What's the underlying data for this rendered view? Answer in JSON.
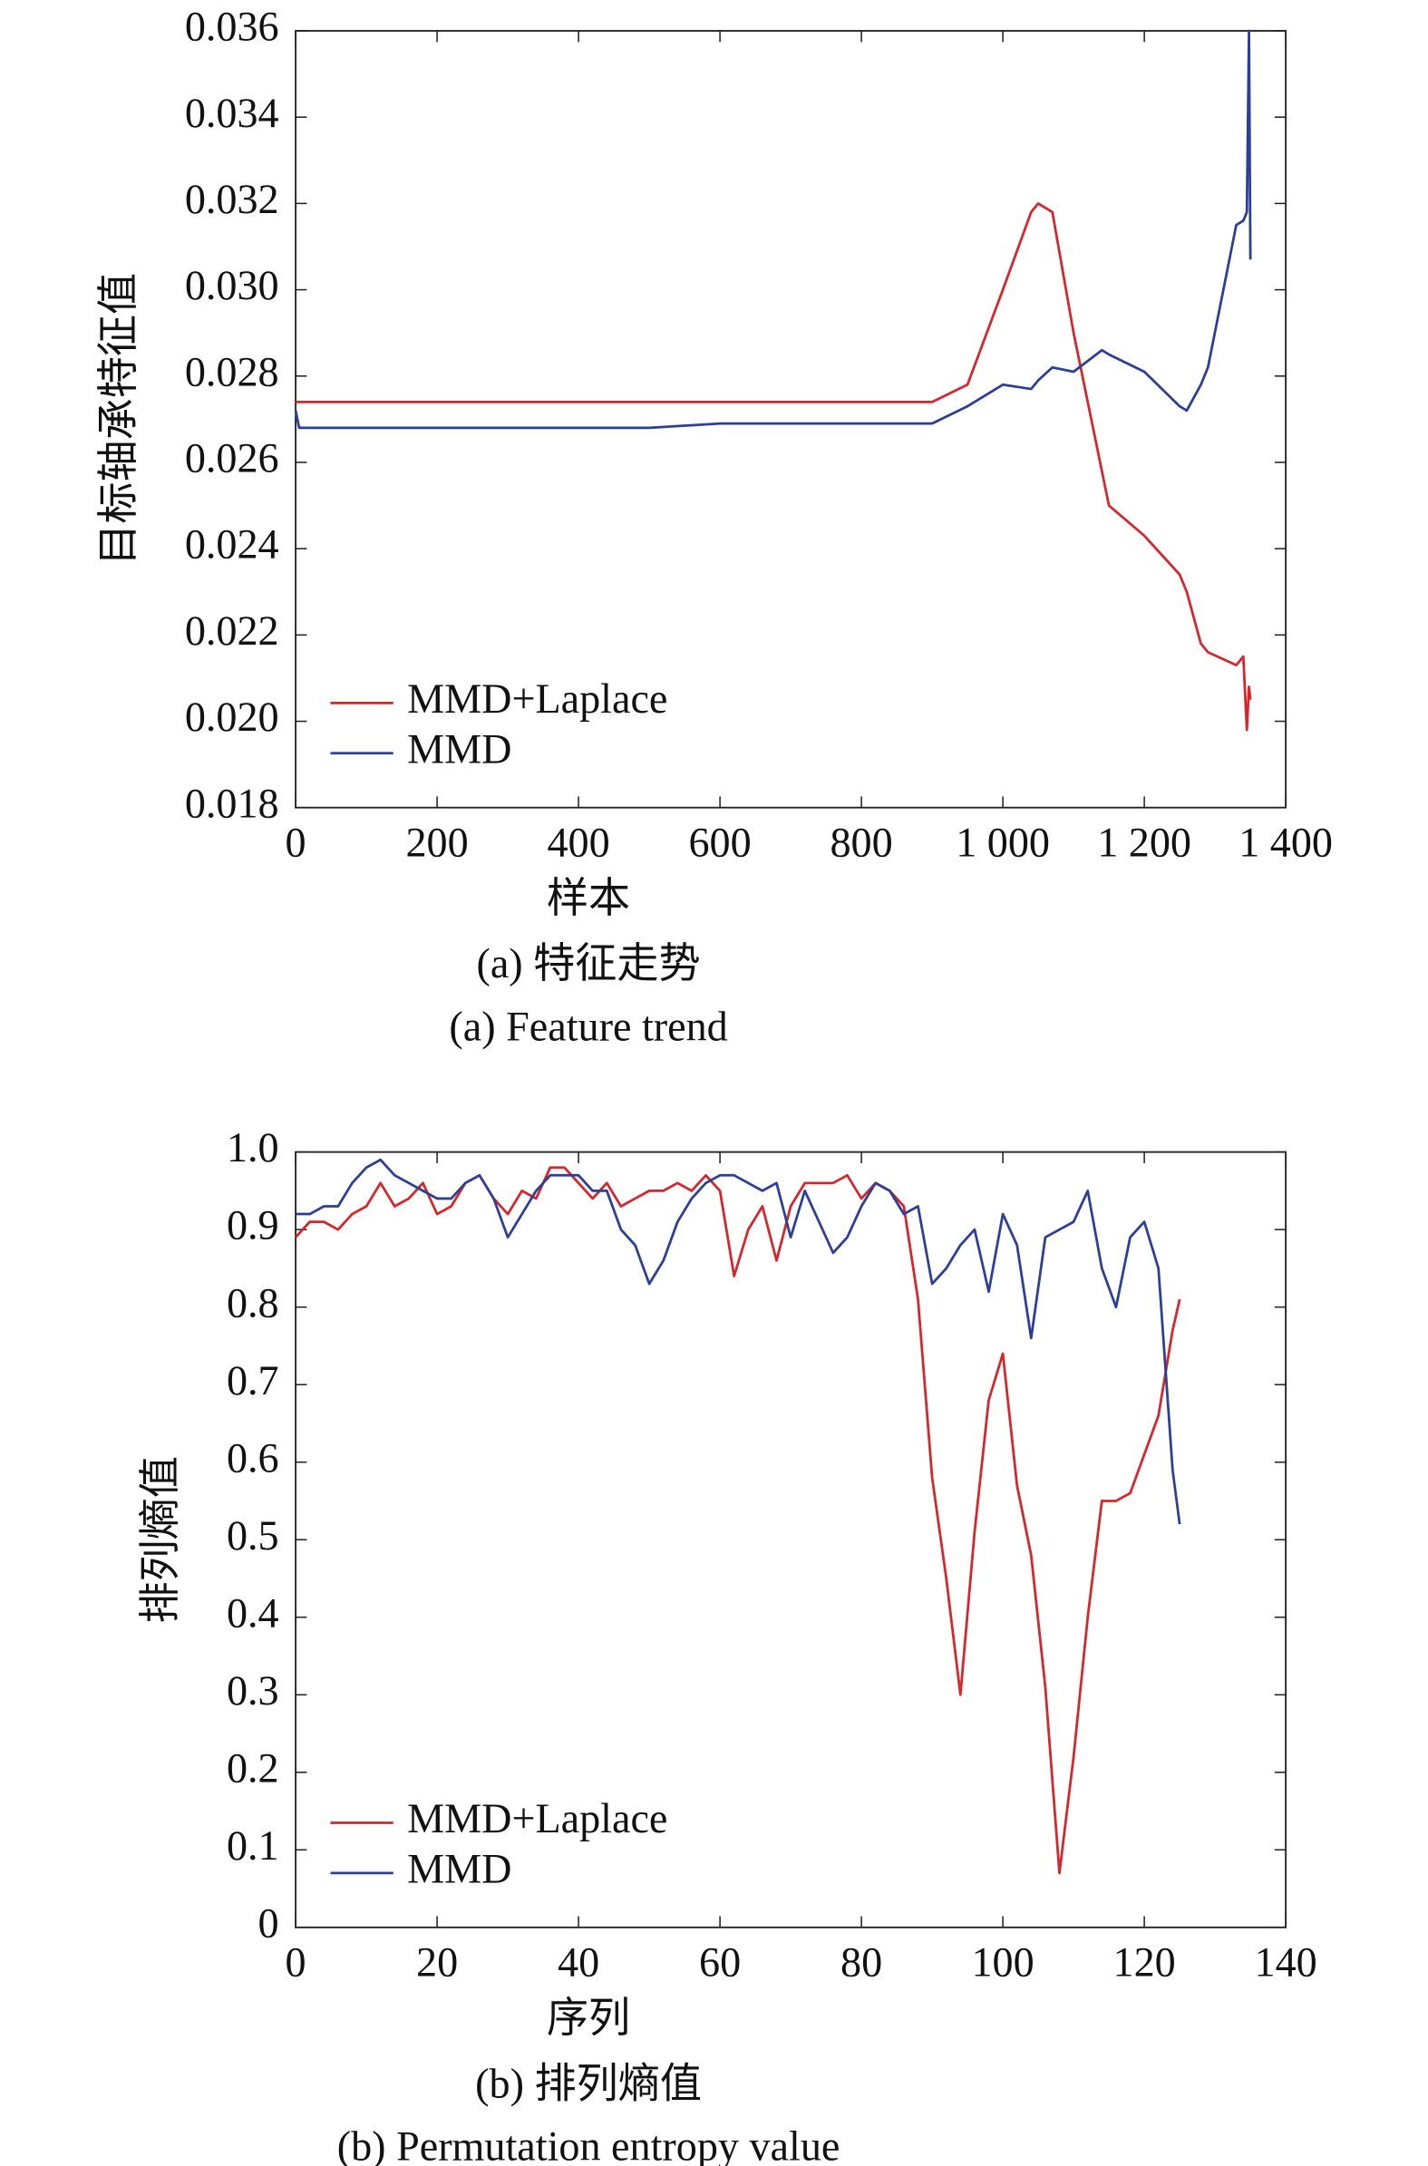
{
  "chart_data": [
    {
      "type": "line",
      "title": "(a) 特征走势",
      "subtitle": "(a) Feature trend",
      "x_label": "样本",
      "y_label": "目标轴承特征值",
      "x": [
        0,
        5,
        100,
        200,
        300,
        400,
        500,
        600,
        700,
        800,
        900,
        950,
        1000,
        1040,
        1050,
        1070,
        1100,
        1140,
        1150,
        1200,
        1250,
        1260,
        1280,
        1290,
        1330,
        1340,
        1345,
        1348,
        1350
      ],
      "series": [
        {
          "name": "MMD+Laplace",
          "color": "#d7262b",
          "values": [
            0.0274,
            0.0274,
            0.0274,
            0.0274,
            0.0274,
            0.0274,
            0.0274,
            0.0274,
            0.0274,
            0.0274,
            0.0274,
            0.0278,
            0.03,
            0.0318,
            0.032,
            0.0318,
            0.029,
            0.0258,
            0.025,
            0.0243,
            0.0234,
            0.023,
            0.0218,
            0.0216,
            0.0213,
            0.0215,
            0.0198,
            0.0208,
            0.0205
          ]
        },
        {
          "name": "MMD",
          "color": "#2b3f98",
          "values": [
            0.0272,
            0.0268,
            0.0268,
            0.0268,
            0.0268,
            0.0268,
            0.0268,
            0.0269,
            0.0269,
            0.0269,
            0.0269,
            0.0273,
            0.0278,
            0.0277,
            0.0279,
            0.0282,
            0.0281,
            0.0286,
            0.0285,
            0.0281,
            0.0273,
            0.0272,
            0.0278,
            0.0282,
            0.0315,
            0.0316,
            0.0318,
            0.036,
            0.0307
          ]
        }
      ],
      "xlim": [
        0,
        1400
      ],
      "xticks": [
        0,
        200,
        400,
        600,
        800,
        {
          "value": 1000,
          "label": "1 000"
        },
        {
          "value": 1200,
          "label": "1 200"
        },
        {
          "value": 1400,
          "label": "1 400"
        }
      ],
      "ylim": [
        0.018,
        0.036
      ],
      "yticks": [
        0.018,
        {
          "value": 0.02,
          "label": "0.020"
        },
        0.022,
        0.024,
        0.026,
        0.028,
        {
          "value": 0.03,
          "label": "0.030"
        },
        0.032,
        0.034,
        0.036
      ],
      "legend": "lower left",
      "grid": false
    },
    {
      "type": "line",
      "title": "(b) 排列熵值",
      "subtitle": "(b) Permutation entropy value",
      "x_label": "序列",
      "y_label": "排列熵值",
      "x": [
        0,
        2,
        4,
        6,
        8,
        10,
        12,
        14,
        16,
        18,
        20,
        22,
        24,
        26,
        28,
        30,
        32,
        34,
        36,
        38,
        40,
        42,
        44,
        46,
        48,
        50,
        52,
        54,
        56,
        58,
        60,
        62,
        64,
        66,
        68,
        70,
        72,
        74,
        76,
        78,
        80,
        82,
        84,
        86,
        88,
        90,
        92,
        94,
        96,
        98,
        100,
        102,
        104,
        106,
        108,
        110,
        112,
        114,
        116,
        118,
        120,
        122,
        124,
        125
      ],
      "series": [
        {
          "name": "MMD+Laplace",
          "color": "#d7262b",
          "values": [
            0.89,
            0.91,
            0.91,
            0.9,
            0.92,
            0.93,
            0.96,
            0.93,
            0.94,
            0.96,
            0.92,
            0.93,
            0.96,
            0.97,
            0.94,
            0.92,
            0.95,
            0.94,
            0.98,
            0.98,
            0.96,
            0.94,
            0.96,
            0.93,
            0.94,
            0.95,
            0.95,
            0.96,
            0.95,
            0.97,
            0.95,
            0.84,
            0.9,
            0.93,
            0.86,
            0.93,
            0.96,
            0.96,
            0.96,
            0.97,
            0.94,
            0.96,
            0.95,
            0.93,
            0.81,
            0.58,
            0.45,
            0.3,
            0.51,
            0.68,
            0.74,
            0.57,
            0.48,
            0.31,
            0.07,
            0.22,
            0.4,
            0.55,
            0.55,
            0.56,
            0.61,
            0.66,
            0.77,
            0.81
          ]
        },
        {
          "name": "MMD",
          "color": "#2b3f98",
          "values": [
            0.92,
            0.92,
            0.93,
            0.93,
            0.96,
            0.98,
            0.99,
            0.97,
            0.96,
            0.95,
            0.94,
            0.94,
            0.96,
            0.97,
            0.94,
            0.89,
            0.92,
            0.95,
            0.97,
            0.97,
            0.97,
            0.95,
            0.95,
            0.9,
            0.88,
            0.83,
            0.86,
            0.91,
            0.94,
            0.96,
            0.97,
            0.97,
            0.96,
            0.95,
            0.96,
            0.89,
            0.95,
            0.91,
            0.87,
            0.89,
            0.93,
            0.96,
            0.95,
            0.92,
            0.93,
            0.83,
            0.85,
            0.88,
            0.9,
            0.82,
            0.92,
            0.88,
            0.76,
            0.89,
            0.9,
            0.91,
            0.95,
            0.85,
            0.8,
            0.89,
            0.91,
            0.85,
            0.59,
            0.52
          ]
        }
      ],
      "xlim": [
        0,
        140
      ],
      "xticks": [
        0,
        20,
        40,
        60,
        80,
        100,
        120,
        140
      ],
      "ylim": [
        0,
        1
      ],
      "yticks": [
        0,
        0.1,
        0.2,
        0.3,
        0.4,
        0.5,
        0.6,
        0.7,
        0.8,
        0.9,
        {
          "value": 1,
          "label": "1.0"
        }
      ],
      "legend": "lower left",
      "grid": false
    }
  ]
}
